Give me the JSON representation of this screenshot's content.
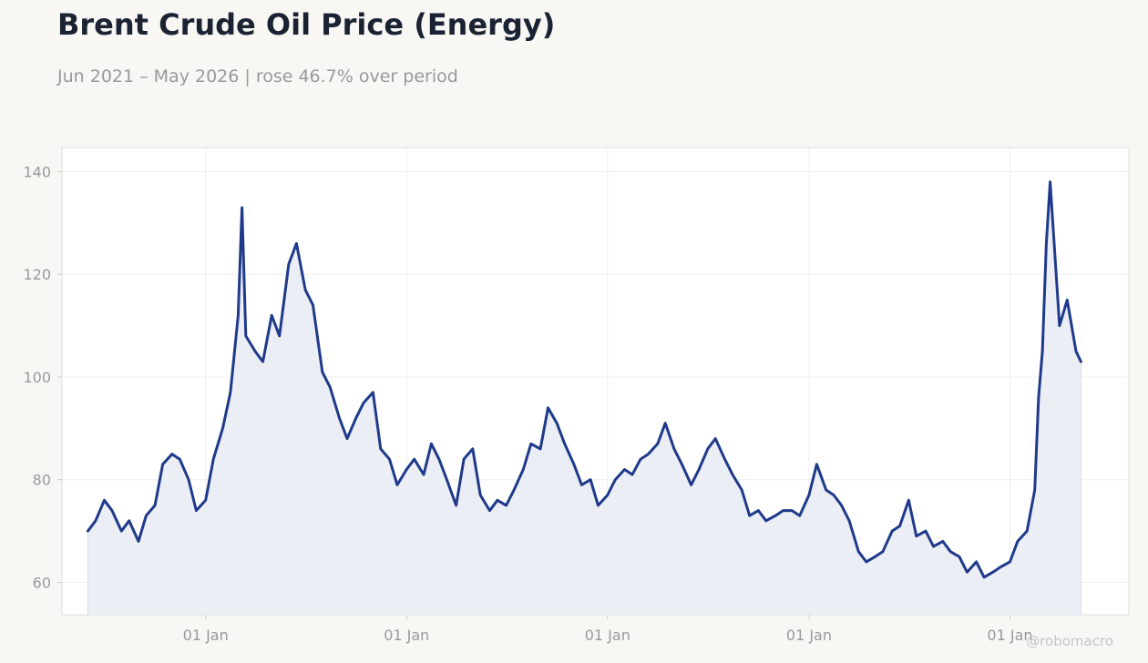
{
  "header": {
    "title": "Brent Crude Oil Price (Energy)",
    "subtitle": "Jun 2021 – May 2026 | rose 46.7% over period",
    "watermark": "@robomacro"
  },
  "colors": {
    "background": "#f8f7f4",
    "plot_background": "#ffffff",
    "line": "#1f3a8a",
    "area_fill": "#eceef6",
    "grid": "#efefef",
    "text_muted": "#999999",
    "title": "#1b2333"
  },
  "chart_data": {
    "type": "area",
    "title": "Brent Crude Oil Price (Energy)",
    "subtitle": "Jun 2021 – May 2026 | rose 46.7% over period",
    "xlabel": "",
    "ylabel": "",
    "xlim": [
      "2021-04-15",
      "2026-08-05"
    ],
    "ylim": [
      53.7,
      144.7
    ],
    "y_ticks": [
      60,
      80,
      100,
      120,
      140
    ],
    "x_ticks": [
      {
        "date": "2022-01-01",
        "label": "01 Jan"
      },
      {
        "date": "2023-01-01",
        "label": "01 Jan"
      },
      {
        "date": "2024-01-01",
        "label": "01 Jan"
      },
      {
        "date": "2025-01-01",
        "label": "01 Jan"
      },
      {
        "date": "2026-01-01",
        "label": "01 Jan"
      }
    ],
    "grid": true,
    "legend": "none",
    "series": [
      {
        "x": [
          "2021-06-01",
          "2021-06-15",
          "2021-07-01",
          "2021-07-15",
          "2021-08-01",
          "2021-08-15",
          "2021-09-01",
          "2021-09-15",
          "2021-10-01",
          "2021-10-15",
          "2021-11-01",
          "2021-11-15",
          "2021-12-01",
          "2021-12-15",
          "2022-01-01",
          "2022-01-15",
          "2022-02-01",
          "2022-02-15",
          "2022-03-01",
          "2022-03-08",
          "2022-03-15",
          "2022-04-01",
          "2022-04-15",
          "2022-05-01",
          "2022-05-15",
          "2022-06-01",
          "2022-06-15",
          "2022-07-01",
          "2022-07-15",
          "2022-08-01",
          "2022-08-15",
          "2022-09-01",
          "2022-09-15",
          "2022-10-01",
          "2022-10-15",
          "2022-11-01",
          "2022-11-15",
          "2022-12-01",
          "2022-12-15",
          "2023-01-01",
          "2023-01-15",
          "2023-02-01",
          "2023-02-15",
          "2023-03-01",
          "2023-03-15",
          "2023-04-01",
          "2023-04-15",
          "2023-05-01",
          "2023-05-15",
          "2023-06-01",
          "2023-06-15",
          "2023-07-01",
          "2023-07-15",
          "2023-08-01",
          "2023-08-15",
          "2023-09-01",
          "2023-09-15",
          "2023-10-01",
          "2023-10-15",
          "2023-11-01",
          "2023-11-15",
          "2023-12-01",
          "2023-12-15",
          "2024-01-01",
          "2024-01-15",
          "2024-02-01",
          "2024-02-15",
          "2024-03-01",
          "2024-03-15",
          "2024-04-01",
          "2024-04-15",
          "2024-05-01",
          "2024-05-15",
          "2024-06-01",
          "2024-06-15",
          "2024-07-01",
          "2024-07-15",
          "2024-08-01",
          "2024-08-15",
          "2024-09-01",
          "2024-09-15",
          "2024-10-01",
          "2024-10-15",
          "2024-11-01",
          "2024-11-15",
          "2024-12-01",
          "2024-12-15",
          "2025-01-01",
          "2025-01-15",
          "2025-02-01",
          "2025-02-15",
          "2025-03-01",
          "2025-03-15",
          "2025-04-01",
          "2025-04-15",
          "2025-05-01",
          "2025-05-15",
          "2025-06-01",
          "2025-06-15",
          "2025-07-01",
          "2025-07-15",
          "2025-08-01",
          "2025-08-15",
          "2025-09-01",
          "2025-09-15",
          "2025-10-01",
          "2025-10-15",
          "2025-11-01",
          "2025-11-15",
          "2025-12-01",
          "2025-12-15",
          "2026-01-01",
          "2026-01-15",
          "2026-02-01",
          "2026-02-15",
          "2026-02-22",
          "2026-03-01",
          "2026-03-08",
          "2026-03-15",
          "2026-04-01",
          "2026-04-15",
          "2026-05-01",
          "2026-05-10"
        ],
        "values": [
          70,
          72,
          76,
          74,
          70,
          72,
          68,
          73,
          75,
          83,
          85,
          84,
          80,
          74,
          76,
          84,
          90,
          97,
          112,
          133,
          108,
          105,
          103,
          112,
          108,
          122,
          126,
          117,
          114,
          101,
          98,
          92,
          88,
          92,
          95,
          97,
          86,
          84,
          79,
          82,
          84,
          81,
          87,
          84,
          80,
          75,
          84,
          86,
          77,
          74,
          76,
          75,
          78,
          82,
          87,
          86,
          94,
          91,
          87,
          83,
          79,
          80,
          75,
          77,
          80,
          82,
          81,
          84,
          85,
          87,
          91,
          86,
          83,
          79,
          82,
          86,
          88,
          84,
          81,
          78,
          73,
          74,
          72,
          73,
          74,
          74,
          73,
          77,
          83,
          78,
          77,
          75,
          72,
          66,
          64,
          65,
          66,
          70,
          71,
          76,
          69,
          70,
          67,
          68,
          66,
          65,
          62,
          64,
          61,
          62,
          63,
          64,
          68,
          70,
          78,
          96,
          105,
          126,
          138,
          110,
          115,
          105,
          103
        ],
        "name": ""
      }
    ]
  }
}
